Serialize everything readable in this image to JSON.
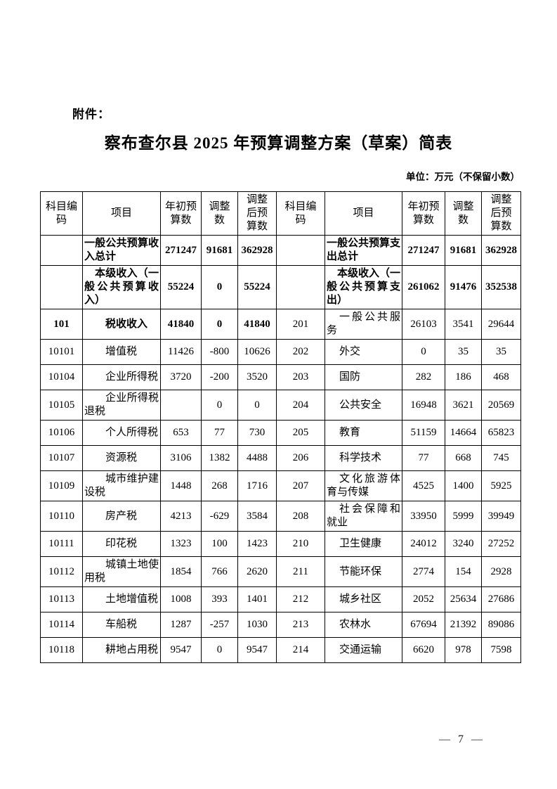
{
  "document": {
    "attachment_label": "附件：",
    "title": "察布查尔县 2025 年预算调整方案（草案）简表",
    "unit_note": "单位：万元（不保留小数）",
    "page_number": "— 7 —"
  },
  "colors": {
    "ink": "#000000",
    "background": "#ffffff"
  },
  "table": {
    "column_headers": [
      "科目编码",
      "项目",
      "年初预算数",
      "调整数",
      "调整后预算数",
      "科目编码",
      "项目",
      "年初预算数",
      "调整数",
      "调整后预算数"
    ],
    "rows": [
      {
        "cells": [
          "",
          "一般公共预算收入总计",
          "271247",
          "91681",
          "362928",
          "",
          "一般公共预算支出总计",
          "271247",
          "91681",
          "362928"
        ]
      },
      {
        "cells": [
          "",
          "本级收入（一般公共预算收入）",
          "55224",
          "0",
          "55224",
          "",
          "本级收入（一般公共预算支出）",
          "261062",
          "91476",
          "352538"
        ]
      },
      {
        "cells": [
          "101",
          "税收收入",
          "41840",
          "0",
          "41840",
          "201",
          "一般公共服务",
          "26103",
          "3541",
          "29644"
        ]
      },
      {
        "cells": [
          "10101",
          "增值税",
          "11426",
          "-800",
          "10626",
          "202",
          "外交",
          "0",
          "35",
          "35"
        ]
      },
      {
        "cells": [
          "10104",
          "企业所得税",
          "3720",
          "-200",
          "3520",
          "203",
          "国防",
          "282",
          "186",
          "468"
        ]
      },
      {
        "cells": [
          "10105",
          "企业所得税退税",
          "",
          "0",
          "0",
          "204",
          "公共安全",
          "16948",
          "3621",
          "20569"
        ]
      },
      {
        "cells": [
          "10106",
          "个人所得税",
          "653",
          "77",
          "730",
          "205",
          "教育",
          "51159",
          "14664",
          "65823"
        ]
      },
      {
        "cells": [
          "10107",
          "资源税",
          "3106",
          "1382",
          "4488",
          "206",
          "科学技术",
          "77",
          "668",
          "745"
        ]
      },
      {
        "cells": [
          "10109",
          "城市维护建设税",
          "1448",
          "268",
          "1716",
          "207",
          "文化旅游体育与传媒",
          "4525",
          "1400",
          "5925"
        ]
      },
      {
        "cells": [
          "10110",
          "房产税",
          "4213",
          "-629",
          "3584",
          "208",
          "社会保障和就业",
          "33950",
          "5999",
          "39949"
        ]
      },
      {
        "cells": [
          "10111",
          "印花税",
          "1323",
          "100",
          "1423",
          "210",
          "卫生健康",
          "24012",
          "3240",
          "27252"
        ]
      },
      {
        "cells": [
          "10112",
          "城镇土地使用税",
          "1854",
          "766",
          "2620",
          "211",
          "节能环保",
          "2774",
          "154",
          "2928"
        ]
      },
      {
        "cells": [
          "10113",
          "土地增值税",
          "1008",
          "393",
          "1401",
          "212",
          "城乡社区",
          "2052",
          "25634",
          "27686"
        ]
      },
      {
        "cells": [
          "10114",
          "车船税",
          "1287",
          "-257",
          "1030",
          "213",
          "农林水",
          "67694",
          "21392",
          "89086"
        ]
      },
      {
        "cells": [
          "10118",
          "耕地占用税",
          "9547",
          "0",
          "9547",
          "214",
          "交通运输",
          "6620",
          "978",
          "7598"
        ]
      }
    ]
  }
}
